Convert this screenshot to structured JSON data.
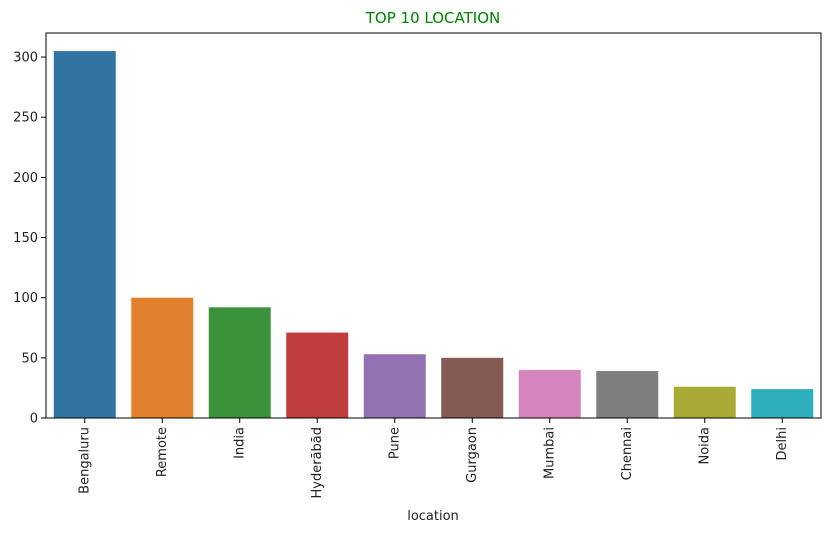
{
  "chart_data": {
    "type": "bar",
    "title": "TOP 10 LOCATION",
    "title_color": "#008000",
    "xlabel": "location",
    "ylabel": "",
    "categories": [
      "Bengaluru",
      "Remote",
      "India",
      "Hyderābād",
      "Pune",
      "Gurgaon",
      "Mumbai",
      "Chennai",
      "Noida",
      "Delhi"
    ],
    "values": [
      305,
      100,
      92,
      71,
      53,
      50,
      40,
      39,
      26,
      24
    ],
    "colors": [
      "#3274a1",
      "#e1812c",
      "#3a923a",
      "#c03d3e",
      "#9372b2",
      "#845b53",
      "#d684bd",
      "#7f7f7f",
      "#a9aa35",
      "#2eaeba"
    ],
    "ylim": [
      0,
      320
    ],
    "yticks": [
      0,
      50,
      100,
      150,
      200,
      250,
      300
    ],
    "grid": false,
    "legend": "none"
  }
}
